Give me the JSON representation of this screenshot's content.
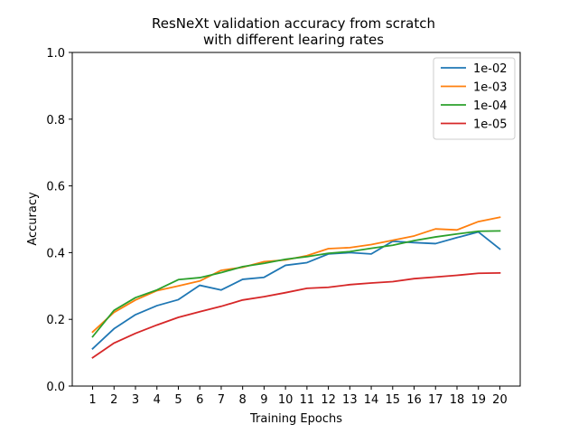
{
  "chart_data": {
    "type": "line",
    "title_lines": [
      "ResNeXt validation accuracy from scratch",
      "with different learing rates"
    ],
    "xlabel": "Training Epochs",
    "ylabel": "Accuracy",
    "x": [
      1,
      2,
      3,
      4,
      5,
      6,
      7,
      8,
      9,
      10,
      11,
      12,
      13,
      14,
      15,
      16,
      17,
      18,
      19,
      20
    ],
    "x_tick_labels": [
      "1",
      "2",
      "3",
      "4",
      "5",
      "6",
      "7",
      "8",
      "9",
      "10",
      "11",
      "12",
      "13",
      "14",
      "15",
      "16",
      "17",
      "18",
      "19",
      "20"
    ],
    "ylim": [
      0,
      1.0
    ],
    "y_ticks": [
      0.0,
      0.2,
      0.4,
      0.6,
      0.8,
      1.0
    ],
    "y_tick_labels": [
      "0.0",
      "0.2",
      "0.4",
      "0.6",
      "0.8",
      "1.0"
    ],
    "grid": false,
    "legend_position": "top-right",
    "series": [
      {
        "name": "1e-02",
        "color": "#1f77b4",
        "values": [
          0.112,
          0.172,
          0.214,
          0.241,
          0.259,
          0.302,
          0.288,
          0.32,
          0.326,
          0.362,
          0.37,
          0.396,
          0.4,
          0.396,
          0.434,
          0.43,
          0.427,
          0.445,
          0.462,
          0.411
        ]
      },
      {
        "name": "1e-03",
        "color": "#ff7f0e",
        "values": [
          0.162,
          0.221,
          0.258,
          0.286,
          0.3,
          0.315,
          0.347,
          0.356,
          0.373,
          0.378,
          0.391,
          0.412,
          0.415,
          0.424,
          0.437,
          0.45,
          0.471,
          0.468,
          0.493,
          0.506
        ]
      },
      {
        "name": "1e-04",
        "color": "#2ca02c",
        "values": [
          0.148,
          0.227,
          0.265,
          0.288,
          0.319,
          0.325,
          0.34,
          0.358,
          0.368,
          0.38,
          0.388,
          0.398,
          0.403,
          0.413,
          0.422,
          0.436,
          0.447,
          0.456,
          0.464,
          0.465
        ]
      },
      {
        "name": "1e-05",
        "color": "#d62728",
        "values": [
          0.085,
          0.129,
          0.158,
          0.183,
          0.206,
          0.223,
          0.239,
          0.258,
          0.268,
          0.28,
          0.293,
          0.296,
          0.304,
          0.309,
          0.313,
          0.322,
          0.327,
          0.332,
          0.338,
          0.339
        ]
      }
    ]
  }
}
